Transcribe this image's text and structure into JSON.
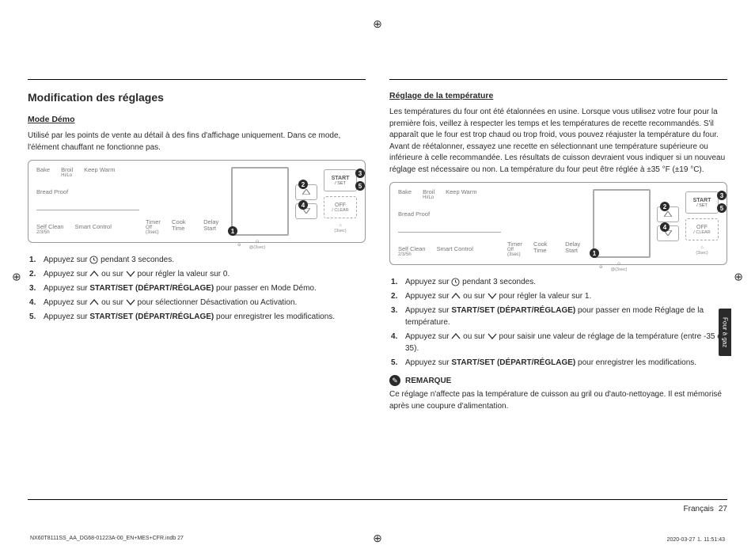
{
  "registration_glyph": "⊕",
  "left_col": {
    "section_title": "Modification des réglages",
    "sub_title": "Mode Démo",
    "intro": "Utilisé par les points de vente au détail à des fins d'affichage uniquement. Dans ce mode, l'élément chauffant ne fonctionne pas.",
    "steps": [
      {
        "pre": "Appuyez sur ",
        "icon": "clock",
        "post": " pendant 3 secondes."
      },
      {
        "pre": "Appuyez sur ",
        "icon": "updown",
        "post": " pour régler la valeur sur 0."
      },
      {
        "pre": "Appuyez sur ",
        "bold": "START/SET (DÉPART/RÉGLAGE)",
        "post": " pour passer en Mode Démo."
      },
      {
        "pre": "Appuyez sur ",
        "icon": "updown",
        "post": " pour sélectionner Désactivation ou Activation."
      },
      {
        "pre": "Appuyez sur ",
        "bold": "START/SET (DÉPART/RÉGLAGE)",
        "post": " pour enregistrer les modifications."
      }
    ]
  },
  "right_col": {
    "sub_title": "Réglage de la température",
    "intro": "Les températures du four ont été étalonnées en usine. Lorsque vous utilisez votre four pour la première fois, veillez à respecter les temps et les températures de recette recommandés. S'il apparaît que le four est trop chaud ou trop froid, vous pouvez réajuster la température du four. Avant de réétalonner, essayez une recette en sélectionnant une température supérieure ou inférieure à celle recommandée. Les résultats de cuisson devraient vous indiquer si un nouveau réglage est nécessaire ou non. La température du four peut être réglée à ±35 °F (±19 °C).",
    "steps": [
      {
        "pre": "Appuyez sur ",
        "icon": "clock",
        "post": " pendant 3 secondes."
      },
      {
        "pre": "Appuyez sur ",
        "icon": "updown",
        "post": " pour régler la valeur sur 1."
      },
      {
        "pre": "Appuyez sur ",
        "bold": "START/SET (DÉPART/RÉGLAGE)",
        "post": " pour passer en mode Réglage de la température."
      },
      {
        "pre": "Appuyez sur ",
        "icon": "updown",
        "post": " pour saisir une valeur de réglage de la température (entre -35 et 35)."
      },
      {
        "pre": "Appuyez sur ",
        "bold": "START/SET (DÉPART/RÉGLAGE)",
        "post": " pour enregistrer les modifications."
      }
    ],
    "note_label": "REMARQUE",
    "note_text": "Ce réglage n'affecte pas la température de cuisson au gril ou d'auto-nettoyage. Il est mémorisé après une coupure d'alimentation."
  },
  "panel": {
    "row1": [
      {
        "label": "Bake"
      },
      {
        "label": "Broil",
        "sub": "Hi/Lo"
      },
      {
        "label": "Keep Warm"
      }
    ],
    "row2": [
      {
        "label": "Bread Proof"
      }
    ],
    "row3": [
      {
        "label": "Self Clean",
        "sub": "2/3/5h"
      },
      {
        "label": "Smart Control"
      }
    ],
    "mid": [
      {
        "label": "Timer",
        "sub": "Off (3sec)"
      },
      {
        "label": "Cook Time"
      },
      {
        "label": "Delay Start"
      }
    ],
    "icons_right": [
      {
        "glyph": "⊖",
        "label": ""
      },
      {
        "glyph": "⊙",
        "label": "@(3sec)"
      },
      {
        "glyph": "⌂",
        "label": "(3sec)"
      }
    ],
    "start": "START",
    "start_sub": "/ SET",
    "off": "OFF",
    "off_sub": "/ CLEAR",
    "callouts": [
      "1",
      "2",
      "3",
      "4",
      "5"
    ]
  },
  "side_tab": "Four à gaz",
  "footer": {
    "lang": "Français",
    "page": "27"
  },
  "print_meta": {
    "left": "NX60T8111SS_AA_DG68-01223A-00_EN+MES+CFR.indb   27",
    "right": "2020-03-27   ⒈ 11:51:43"
  }
}
